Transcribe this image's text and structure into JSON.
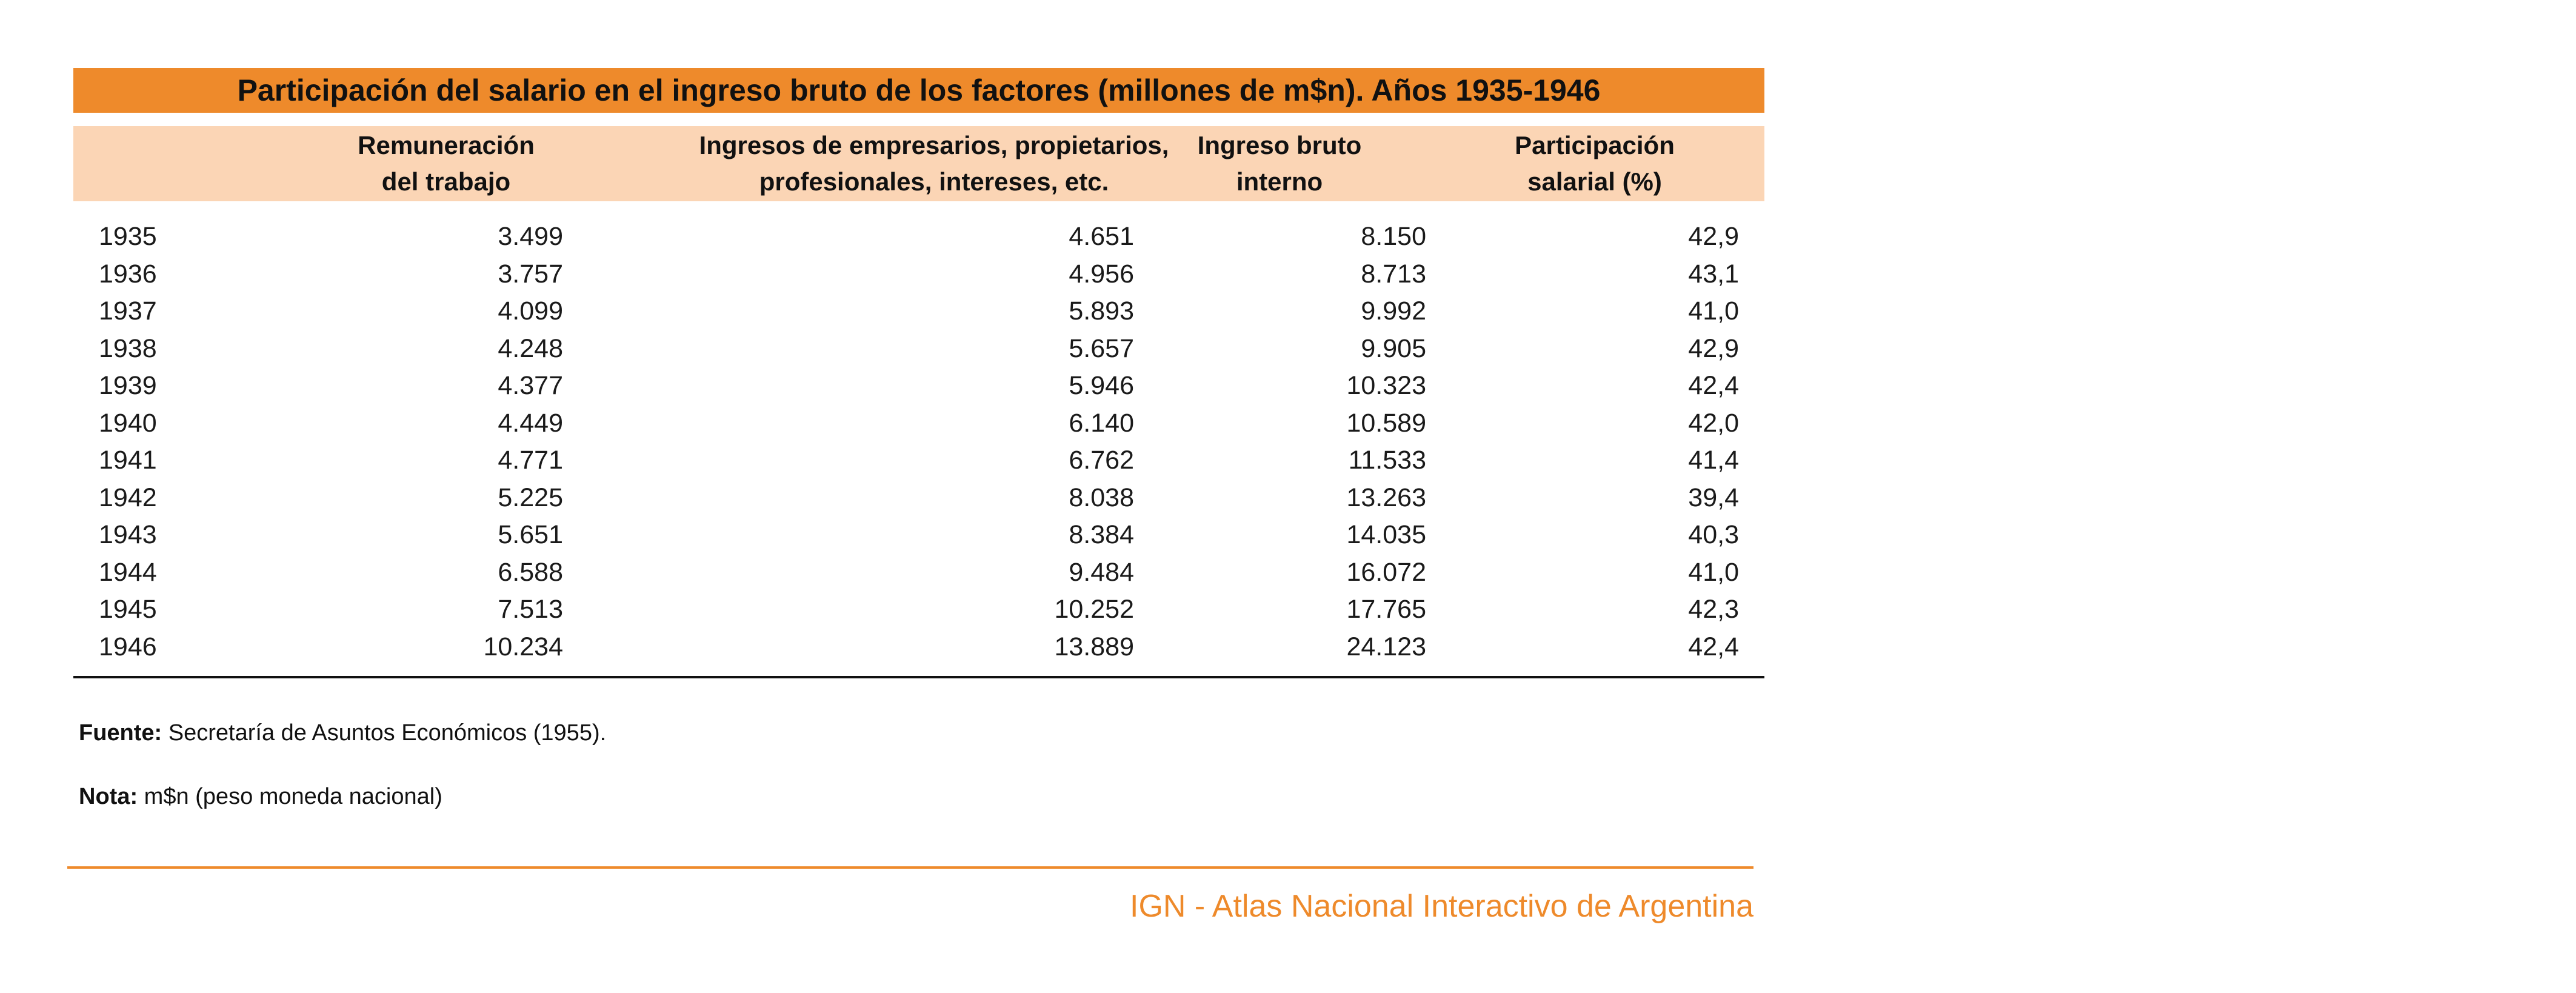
{
  "title": "Participación del salario en el ingreso bruto de los factores (millones de m$n). Años 1935-1946",
  "headers": {
    "col1": [
      "Remuneración",
      "del trabajo"
    ],
    "col2": [
      "Ingresos de empresarios, propietarios,",
      "profesionales, intereses, etc."
    ],
    "col3": [
      "Ingreso bruto",
      "interno"
    ],
    "col4": [
      "Participación",
      "salarial (%)"
    ]
  },
  "rows": [
    {
      "year": "1935",
      "remuneracion": "3.499",
      "ingresos": "4.651",
      "bruto": "8.150",
      "participacion": "42,9"
    },
    {
      "year": "1936",
      "remuneracion": "3.757",
      "ingresos": "4.956",
      "bruto": "8.713",
      "participacion": "43,1"
    },
    {
      "year": "1937",
      "remuneracion": "4.099",
      "ingresos": "5.893",
      "bruto": "9.992",
      "participacion": "41,0"
    },
    {
      "year": "1938",
      "remuneracion": "4.248",
      "ingresos": "5.657",
      "bruto": "9.905",
      "participacion": "42,9"
    },
    {
      "year": "1939",
      "remuneracion": "4.377",
      "ingresos": "5.946",
      "bruto": "10.323",
      "participacion": "42,4"
    },
    {
      "year": "1940",
      "remuneracion": "4.449",
      "ingresos": "6.140",
      "bruto": "10.589",
      "participacion": "42,0"
    },
    {
      "year": "1941",
      "remuneracion": "4.771",
      "ingresos": "6.762",
      "bruto": "11.533",
      "participacion": "41,4"
    },
    {
      "year": "1942",
      "remuneracion": "5.225",
      "ingresos": "8.038",
      "bruto": "13.263",
      "participacion": "39,4"
    },
    {
      "year": "1943",
      "remuneracion": "5.651",
      "ingresos": "8.384",
      "bruto": "14.035",
      "participacion": "40,3"
    },
    {
      "year": "1944",
      "remuneracion": "6.588",
      "ingresos": "9.484",
      "bruto": "16.072",
      "participacion": "41,0"
    },
    {
      "year": "1945",
      "remuneracion": "7.513",
      "ingresos": "10.252",
      "bruto": "17.765",
      "participacion": "42,3"
    },
    {
      "year": "1946",
      "remuneracion": "10.234",
      "ingresos": "13.889",
      "bruto": "24.123",
      "participacion": "42,4"
    }
  ],
  "fuente": {
    "label": "Fuente:",
    "text": " Secretaría de Asuntos Económicos (1955)."
  },
  "nota": {
    "label": "Nota:",
    "text": " m$n (peso moneda nacional)"
  },
  "credit": "IGN - Atlas Nacional Interactivo de Argentina",
  "colors": {
    "accent": "#ee8a2b",
    "header_bg": "#fbd5b5"
  }
}
